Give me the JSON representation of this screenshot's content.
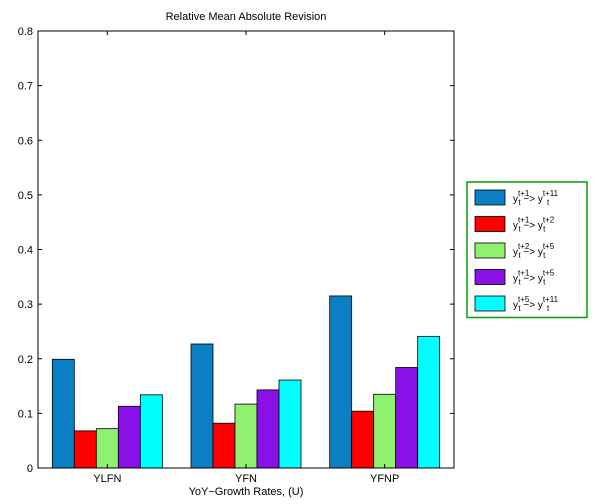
{
  "chart_data": {
    "type": "bar",
    "title": "Relative Mean Absolute Revision",
    "xlabel": "YoY−Growth Rates, (U)",
    "ylabel": "",
    "categories": [
      "YLFN",
      "YFN",
      "YFNP"
    ],
    "ylim": [
      0,
      0.8
    ],
    "yticks": [
      "0",
      "0.1",
      "0.2",
      "0.3",
      "0.4",
      "0.5",
      "0.6",
      "0.7",
      "0.8"
    ],
    "grid": false,
    "legend_position": "right",
    "legend_border_color": "#00a000",
    "series": [
      {
        "name": "y_t^{t+1} -> y_t^{t+11}",
        "base": "y",
        "sub": "t",
        "sup_from": "t+1",
        "arrow": "−>",
        "sup_to": "t+11",
        "color": "#0a7fc4",
        "values": [
          0.199,
          0.227,
          0.315
        ]
      },
      {
        "name": "y_t^{t+1} -> y_t^{t+2}",
        "base": "y",
        "sub": "t",
        "sup_from": "t+1",
        "arrow": "−>",
        "sup_to": "t+2",
        "color": "#ff0000",
        "values": [
          0.068,
          0.082,
          0.104
        ]
      },
      {
        "name": "y_t^{t+2} -> y_t^{t+5}",
        "base": "y",
        "sub": "t",
        "sup_from": "t+2",
        "arrow": "−>",
        "sup_to": "t+5",
        "color": "#90f070",
        "values": [
          0.072,
          0.117,
          0.135
        ]
      },
      {
        "name": "y_t^{t+1} -> y_t^{t+5}",
        "base": "y",
        "sub": "t",
        "sup_from": "t+1",
        "arrow": "−>",
        "sup_to": "t+5",
        "color": "#8a10e8",
        "values": [
          0.113,
          0.143,
          0.184
        ]
      },
      {
        "name": "y_t^{t+5} -> y_t^{t+11}",
        "base": "y",
        "sub": "t",
        "sup_from": "t+5",
        "arrow": "−>",
        "sup_to": "t+11",
        "color": "#00ffff",
        "values": [
          0.134,
          0.161,
          0.241
        ]
      }
    ]
  }
}
